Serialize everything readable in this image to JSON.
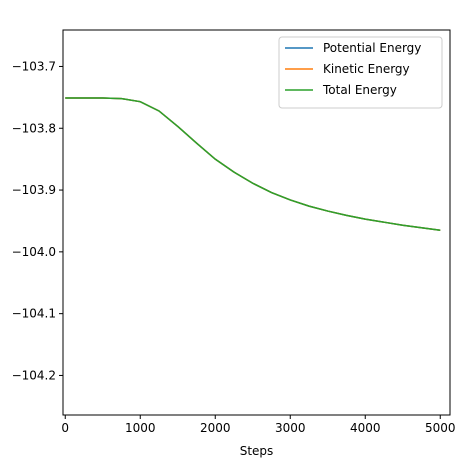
{
  "chart_data": {
    "type": "line",
    "title": "",
    "xlabel": "Steps",
    "ylabel": "",
    "xlim": [
      -30,
      5130
    ],
    "ylim": [
      -104.264,
      -103.641
    ],
    "xticks": [
      0,
      1000,
      2000,
      3000,
      4000,
      5000
    ],
    "xtick_labels": [
      "0",
      "1000",
      "2000",
      "3000",
      "4000",
      "5000"
    ],
    "yticks": [
      -103.7,
      -103.8,
      -103.9,
      -104.0,
      -104.1,
      -104.2
    ],
    "ytick_labels": [
      "−103.7",
      "−103.8",
      "−103.9",
      "−104.0",
      "−104.1",
      "−104.2"
    ],
    "grid": false,
    "legend_position": "top-right",
    "x": [
      0,
      250,
      500,
      750,
      1000,
      1250,
      1500,
      1750,
      2000,
      2250,
      2500,
      2750,
      3000,
      3250,
      3500,
      3750,
      4000,
      4250,
      4500,
      4750,
      5000
    ],
    "series": [
      {
        "name": "Potential Energy",
        "color": "#1f77b4",
        "values": [
          -103.751,
          -103.751,
          -103.751,
          -103.752,
          -103.757,
          -103.772,
          -103.797,
          -103.824,
          -103.85,
          -103.871,
          -103.889,
          -103.904,
          -103.916,
          -103.926,
          -103.934,
          -103.941,
          -103.947,
          -103.952,
          -103.957,
          -103.961,
          -103.965
        ]
      },
      {
        "name": "Kinetic Energy",
        "color": "#ff7f0e",
        "values": [
          -103.751,
          -103.751,
          -103.751,
          -103.752,
          -103.757,
          -103.772,
          -103.797,
          -103.824,
          -103.85,
          -103.871,
          -103.889,
          -103.904,
          -103.916,
          -103.926,
          -103.934,
          -103.941,
          -103.947,
          -103.952,
          -103.957,
          -103.961,
          -103.965
        ]
      },
      {
        "name": "Total Energy",
        "color": "#2ca02c",
        "values": [
          -103.751,
          -103.751,
          -103.751,
          -103.752,
          -103.757,
          -103.772,
          -103.797,
          -103.824,
          -103.85,
          -103.871,
          -103.889,
          -103.904,
          -103.916,
          -103.926,
          -103.934,
          -103.941,
          -103.947,
          -103.952,
          -103.957,
          -103.961,
          -103.965
        ]
      }
    ]
  }
}
